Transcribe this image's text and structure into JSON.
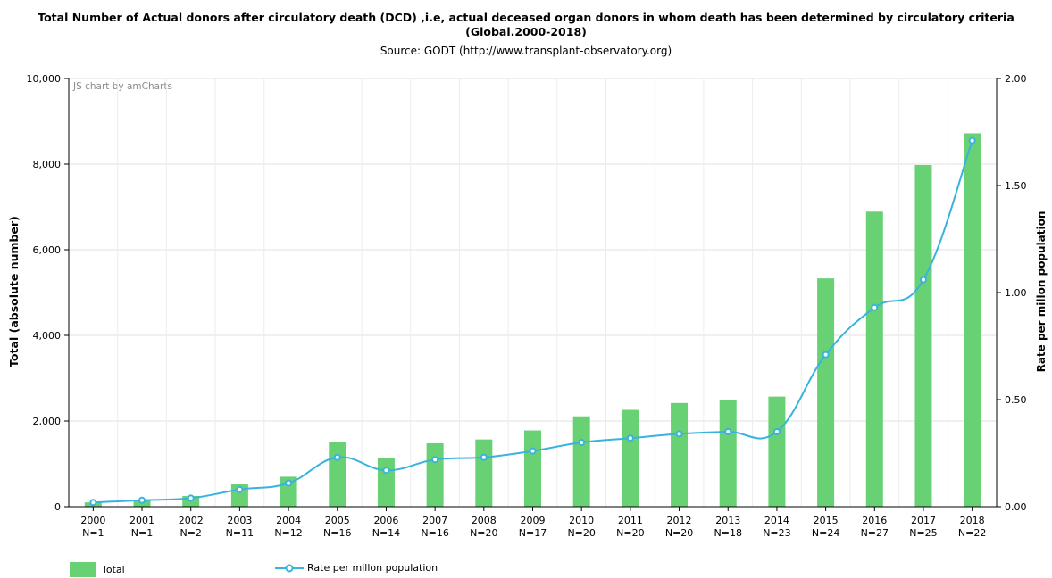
{
  "chart_data": {
    "type": "bar",
    "title": "Total Number of Actual donors after circulatory death (DCD) ,i.e, actual deceased organ donors in whom death has been determined by circulatory criteria",
    "title_line2": "(Global.2000-2018)",
    "subtitle": "Source: GODT (http://www.transplant-observatory.org)",
    "credit": "JS chart by amCharts",
    "ylabel": "Total (absolute number)",
    "y2label": "Rate per millon population",
    "ylim": [
      0,
      10000
    ],
    "y2lim": [
      0,
      2
    ],
    "yticks": [
      "0",
      "2,000",
      "4,000",
      "6,000",
      "8,000",
      "10,000"
    ],
    "y2ticks": [
      "0.00",
      "0.50",
      "1.00",
      "1.50",
      "2.00"
    ],
    "grid": true,
    "legend_placement": "bottom-left",
    "categories": [
      "2000",
      "2001",
      "2002",
      "2003",
      "2004",
      "2005",
      "2006",
      "2007",
      "2008",
      "2009",
      "2010",
      "2011",
      "2012",
      "2013",
      "2014",
      "2015",
      "2016",
      "2017",
      "2018"
    ],
    "category_sublabels": [
      "N=1",
      "N=1",
      "N=2",
      "N=11",
      "N=12",
      "N=16",
      "N=14",
      "N=16",
      "N=20",
      "N=17",
      "N=20",
      "N=20",
      "N=20",
      "N=18",
      "N=23",
      "N=24",
      "N=27",
      "N=25",
      "N=22"
    ],
    "series": [
      {
        "name": "Total",
        "axis": "left",
        "type": "bar",
        "color": "#67d174",
        "values": [
          100,
          150,
          250,
          520,
          700,
          1500,
          1130,
          1480,
          1570,
          1780,
          2110,
          2260,
          2420,
          2480,
          2570,
          5330,
          6890,
          7980,
          8720
        ]
      },
      {
        "name": "Rate per millon population",
        "axis": "right",
        "type": "line",
        "color": "#38b3dd",
        "values": [
          0.02,
          0.03,
          0.04,
          0.08,
          0.11,
          0.23,
          0.17,
          0.22,
          0.23,
          0.26,
          0.3,
          0.32,
          0.34,
          0.35,
          0.35,
          0.71,
          0.93,
          1.06,
          1.71
        ]
      }
    ]
  }
}
